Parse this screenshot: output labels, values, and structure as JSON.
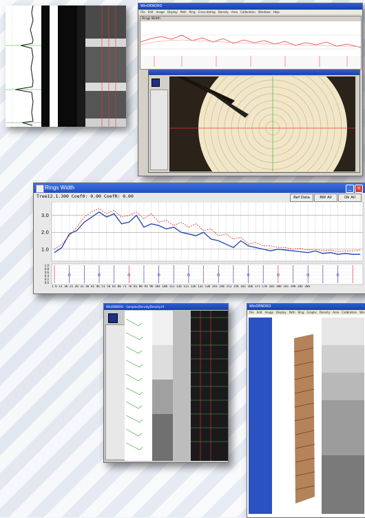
{
  "screenshot1": {
    "name": "core-density-profile"
  },
  "screenshot2": {
    "title": "WinDENDRO",
    "menu": [
      "File",
      "Edit",
      "Image",
      "Display",
      "Path",
      "Ring",
      "Cross-dating",
      "Density",
      "Area",
      "Calibration",
      "Windows",
      "Help"
    ],
    "graph_title": "Rings Width",
    "buttons": [
      "Ref Data",
      "RW All",
      "Ok All"
    ]
  },
  "ringsWidth": {
    "title": "Rings Width",
    "stats": "Tree12.1.300   Coef0: 0.00   CoefR: 0.00",
    "buttons": [
      "Ref Data",
      "RW All",
      "Ok All"
    ],
    "yticks": [
      "3.0",
      "2.0",
      "1.0"
    ],
    "lower_yticks": [
      "1.0",
      "0.8",
      "0.6",
      "0.4",
      "0.2",
      "0.0"
    ],
    "xaxis_label": "1 6 11 16 21 26 31 36 41 46 51 56 61 66 71 76 81 86 91 96 101 106 111 116 121 126 131 136 141 146 151 156 161 166 171 176 181 186 191 196 201 206"
  },
  "screenshot4": {
    "title": "WinDENDRO - Samples/Density/Density.tif"
  },
  "screenshot5": {
    "title": "WinDENDRO",
    "menu": [
      "File",
      "Edit",
      "Image",
      "Display",
      "Path",
      "Ring",
      "Graphs",
      "Density",
      "Area",
      "Calibration",
      "Windows",
      "Help"
    ]
  },
  "chart_data": {
    "type": "line",
    "title": "Rings Width",
    "yticks": [
      1.0,
      2.0,
      3.0
    ],
    "x": [
      1,
      6,
      11,
      16,
      21,
      26,
      31,
      36,
      41,
      46,
      51,
      56,
      61,
      66,
      71,
      76,
      81,
      86,
      91,
      96,
      101,
      106,
      111,
      116,
      121,
      126,
      131,
      136,
      141,
      146,
      151,
      156,
      161,
      166,
      171,
      176,
      181,
      186,
      191,
      196,
      201,
      206
    ],
    "series": [
      {
        "color": "#1d3fa8",
        "values": [
          0.8,
          1.1,
          1.9,
          2.1,
          2.6,
          2.9,
          3.2,
          2.9,
          3.1,
          2.5,
          2.6,
          3.0,
          2.3,
          2.5,
          2.4,
          2.2,
          2.3,
          2.0,
          1.9,
          1.8,
          2.0,
          1.6,
          1.5,
          1.3,
          1.1,
          1.5,
          1.2,
          1.1,
          1.0,
          0.9,
          1.0,
          0.95,
          0.9,
          0.85,
          0.8,
          0.9,
          0.75,
          0.8,
          0.7,
          0.75,
          0.7,
          0.7
        ]
      },
      {
        "color": "#e03a3a",
        "values": [
          1.0,
          1.3,
          1.8,
          2.3,
          2.9,
          3.2,
          3.4,
          3.1,
          3.3,
          2.9,
          3.0,
          3.2,
          2.8,
          3.1,
          2.6,
          2.7,
          2.4,
          2.6,
          2.3,
          2.5,
          2.1,
          2.2,
          1.8,
          1.9,
          1.6,
          1.7,
          1.3,
          1.4,
          1.2,
          1.2,
          1.1,
          1.1,
          1.0,
          1.05,
          0.95,
          1.0,
          0.9,
          0.95,
          0.85,
          0.9,
          0.9,
          0.95
        ]
      }
    ],
    "ylim": [
      0.3,
      3.8
    ]
  }
}
